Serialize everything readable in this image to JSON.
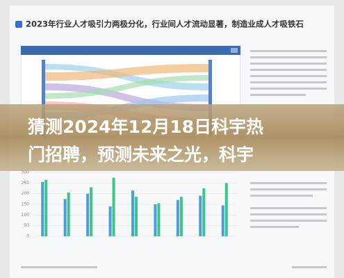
{
  "header": {
    "title": "2023年行业人才吸引力两极分化，行业间人才流动显著，制造业成人才吸铁石"
  },
  "overlay": {
    "lines": [
      "猜测2024年12月18日科宇热",
      "门招聘，预测未来之光，科宇"
    ]
  },
  "chart_data": {
    "type": "bar",
    "ylim": [
      0,
      300
    ],
    "yticks": [
      0,
      50,
      100,
      150,
      200,
      250,
      300
    ],
    "grid": true,
    "series": [
      {
        "color": "#4a9fd8",
        "values": [
          255,
          175,
          200,
          140,
          215,
          150,
          170,
          190,
          145
        ]
      },
      {
        "color": "#3cc48a",
        "values": [
          265,
          205,
          230,
          275,
          185,
          155,
          185,
          225,
          250
        ]
      }
    ]
  }
}
